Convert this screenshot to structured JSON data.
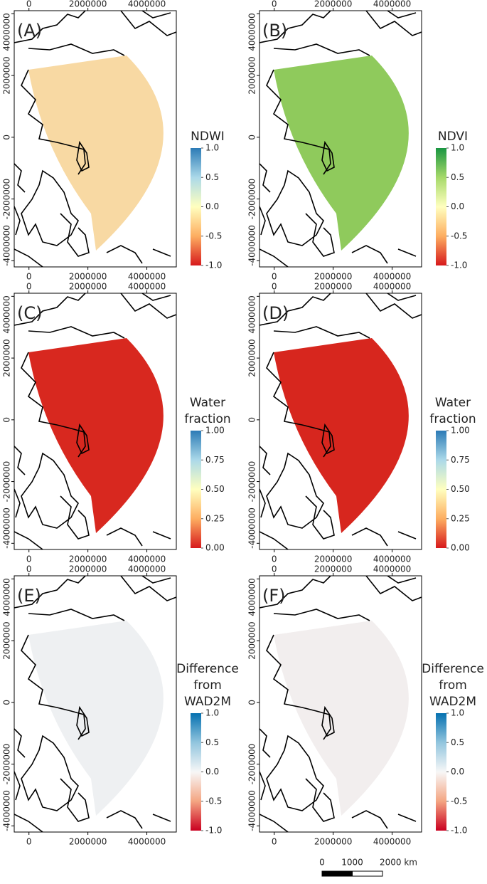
{
  "axes": {
    "xlim": [
      -500000,
      5000000
    ],
    "ylim": [
      -4200000,
      4100000
    ],
    "xticks": [
      0,
      2000000,
      4000000
    ],
    "yticks": [
      -4000000,
      -2000000,
      0,
      2000000,
      4000000
    ]
  },
  "panels": [
    {
      "label": "(A)",
      "legend_title": [
        "NDWI"
      ],
      "clim": [
        -1,
        1
      ],
      "ticks": [
        {
          "value": 1,
          "label": "1.0"
        },
        {
          "value": 0.5,
          "label": "0.5"
        },
        {
          "value": 0,
          "label": "0.0"
        },
        {
          "value": -0.5,
          "label": "-0.5"
        },
        {
          "value": -1,
          "label": "-1.0"
        }
      ],
      "colors": [
        "#d7191c",
        "#fdae61",
        "#ffffbf",
        "#abd9e9",
        "#2c7bb6"
      ],
      "map_color": "#f8d9a3"
    },
    {
      "label": "(B)",
      "legend_title": [
        "NDVI"
      ],
      "clim": [
        -1,
        1
      ],
      "ticks": [
        {
          "value": 1,
          "label": "1.0"
        },
        {
          "value": 0.5,
          "label": "0.5"
        },
        {
          "value": 0,
          "label": "0.0"
        },
        {
          "value": -0.5,
          "label": "-0.5"
        },
        {
          "value": -1,
          "label": "-1.0"
        }
      ],
      "colors": [
        "#d7191c",
        "#fdae61",
        "#ffffbf",
        "#a6d96a",
        "#1a9641"
      ],
      "map_color": "#8fca5c"
    },
    {
      "label": "(C)",
      "legend_title": [
        "Water",
        "fraction"
      ],
      "clim": [
        0,
        1
      ],
      "ticks": [
        {
          "value": 1,
          "label": "1.00"
        },
        {
          "value": 0.75,
          "label": "0.75"
        },
        {
          "value": 0.5,
          "label": "0.50"
        },
        {
          "value": 0.25,
          "label": "0.25"
        },
        {
          "value": 0,
          "label": "0.00"
        }
      ],
      "colors": [
        "#d7191c",
        "#fdae61",
        "#ffffbf",
        "#abd9e9",
        "#2c7bb6"
      ],
      "map_color": "#d8281f"
    },
    {
      "label": "(D)",
      "legend_title": [
        "Water",
        "fraction"
      ],
      "clim": [
        0,
        1
      ],
      "ticks": [
        {
          "value": 1,
          "label": "1.00"
        },
        {
          "value": 0.75,
          "label": "0.75"
        },
        {
          "value": 0.5,
          "label": "0.50"
        },
        {
          "value": 0.25,
          "label": "0.25"
        },
        {
          "value": 0,
          "label": "0.00"
        }
      ],
      "colors": [
        "#d7191c",
        "#fdae61",
        "#ffffbf",
        "#abd9e9",
        "#2c7bb6"
      ],
      "map_color": "#d7261e"
    },
    {
      "label": "(E)",
      "legend_title": [
        "Difference",
        "from",
        "WAD2M"
      ],
      "clim": [
        -1,
        1
      ],
      "ticks": [
        {
          "value": 1,
          "label": "1.0"
        },
        {
          "value": 0.5,
          "label": "0.5"
        },
        {
          "value": 0,
          "label": "0.0"
        },
        {
          "value": -0.5,
          "label": "-0.5"
        },
        {
          "value": -1,
          "label": "-1.0"
        }
      ],
      "colors": [
        "#ca0020",
        "#f4a582",
        "#f7f7f7",
        "#92c5de",
        "#0571b0"
      ],
      "map_color": "#eef0f2"
    },
    {
      "label": "(F)",
      "legend_title": [
        "Difference",
        "from",
        "WAD2M"
      ],
      "clim": [
        -1,
        1
      ],
      "ticks": [
        {
          "value": 1,
          "label": "1.0"
        },
        {
          "value": 0.5,
          "label": "0.5"
        },
        {
          "value": 0,
          "label": "0.0"
        },
        {
          "value": -0.5,
          "label": "-0.5"
        },
        {
          "value": -1,
          "label": "-1.0"
        }
      ],
      "colors": [
        "#ca0020",
        "#f4a582",
        "#f7f7f7",
        "#92c5de",
        "#0571b0"
      ],
      "map_color": "#f2eeee"
    }
  ],
  "scale_bar": {
    "ticks": [
      0,
      1000,
      {
        "value": 2000,
        "label": "2000 km"
      }
    ]
  }
}
